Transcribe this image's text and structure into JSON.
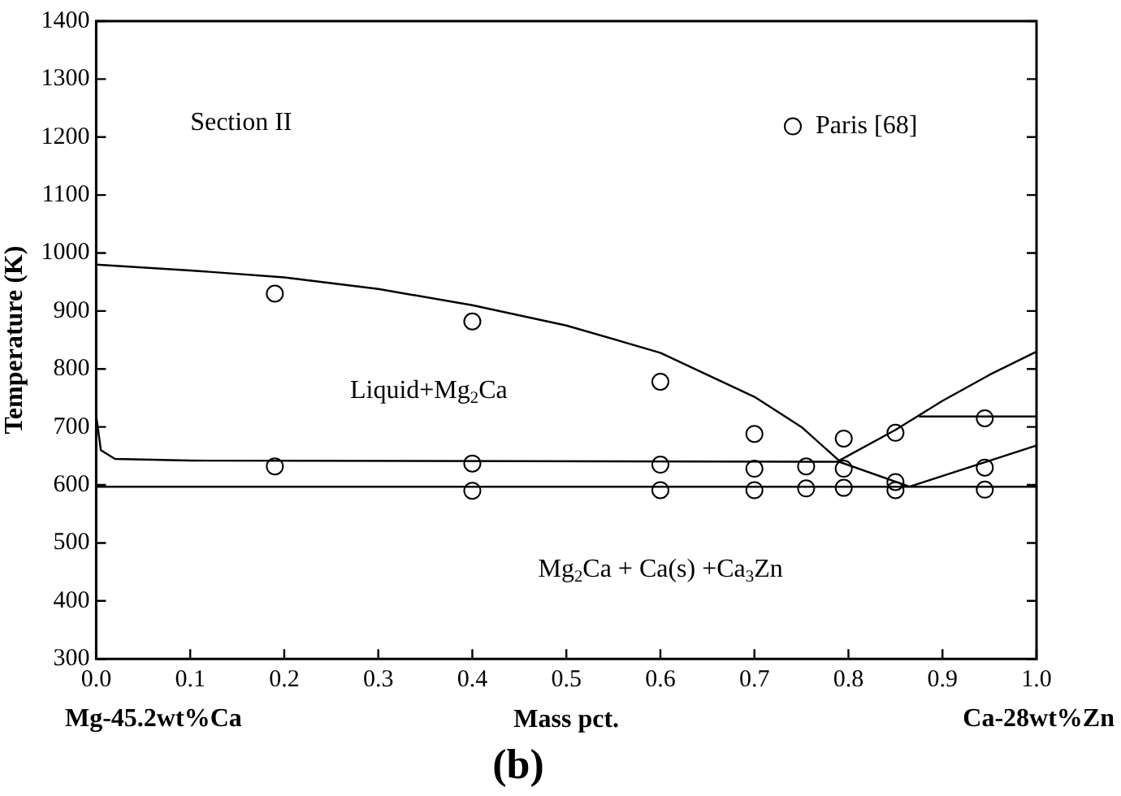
{
  "chart_data": {
    "type": "line",
    "title": "(b)",
    "xlabel": "Mass pct.",
    "ylabel": "Temperature (K)",
    "xlim": [
      0,
      1
    ],
    "ylim": [
      300,
      1400
    ],
    "xticks": [
      {
        "value": 0,
        "label": "0.0"
      },
      {
        "value": 0.1,
        "label": "0.1"
      },
      {
        "value": 0.2,
        "label": "0.2"
      },
      {
        "value": 0.3,
        "label": "0.3"
      },
      {
        "value": 0.4,
        "label": "0.4"
      },
      {
        "value": 0.5,
        "label": "0.5"
      },
      {
        "value": 0.6,
        "label": "0.6"
      },
      {
        "value": 0.7,
        "label": "0.7"
      },
      {
        "value": 0.8,
        "label": "0.8"
      },
      {
        "value": 0.9,
        "label": "0.9"
      },
      {
        "value": 1,
        "label": "1.0"
      }
    ],
    "yticks": [
      300,
      400,
      500,
      600,
      700,
      800,
      900,
      1000,
      1100,
      1200,
      1300,
      1400
    ],
    "grid": false,
    "legend": "top right",
    "series": [
      {
        "type": "line",
        "color": "#000000",
        "marker": "none",
        "x": [
          0,
          0.1,
          0.2,
          0.3,
          0.4,
          0.5,
          0.6,
          0.7,
          0.75,
          0.79
        ],
        "values": [
          980,
          970,
          958,
          938,
          910,
          875,
          828,
          752,
          700,
          642
        ]
      },
      {
        "type": "line",
        "color": "#000000",
        "marker": "none",
        "x": [
          0.79,
          0.85,
          0.9,
          0.95,
          1.0
        ],
        "values": [
          642,
          695,
          745,
          790,
          830
        ]
      },
      {
        "type": "line",
        "color": "#000000",
        "marker": "none",
        "x": [
          0,
          0.005,
          0.02,
          0.1,
          0.79
        ],
        "values": [
          720,
          660,
          645,
          642,
          640
        ]
      },
      {
        "type": "line",
        "color": "#000000",
        "marker": "none",
        "x": [
          0,
          1
        ],
        "values": [
          597,
          597
        ]
      },
      {
        "type": "line",
        "color": "#000000",
        "marker": "none",
        "x": [
          0.79,
          0.865
        ],
        "values": [
          640,
          597
        ]
      },
      {
        "type": "line",
        "color": "#000000",
        "marker": "none",
        "x": [
          0.865,
          1
        ],
        "values": [
          597,
          668
        ]
      },
      {
        "type": "line",
        "color": "#000000",
        "marker": "none",
        "x": [
          0.875,
          1
        ],
        "values": [
          718,
          718
        ]
      },
      {
        "type": "scatter",
        "name": "Paris [68]",
        "color": "#000000",
        "marker": "circle",
        "x": [
          0.19,
          0.19,
          0.4,
          0.4,
          0.4,
          0.6,
          0.6,
          0.6,
          0.7,
          0.7,
          0.7,
          0.755,
          0.755,
          0.795,
          0.795,
          0.795,
          0.85,
          0.85,
          0.85,
          0.945,
          0.945,
          0.945
        ],
        "values": [
          930,
          632,
          882,
          637,
          590,
          778,
          635,
          591,
          688,
          628,
          591,
          632,
          594,
          680,
          628,
          595,
          690,
          605,
          591,
          715,
          630,
          592
        ]
      }
    ],
    "annotations": [
      "Section II",
      "Liquid+Mg$_{2}$Ca",
      "Mg$_{2}$Ca + Ca(s) +Ca$_{3}$Zn",
      "Mg-45.2wt%Ca",
      "Ca-28wt%Zn"
    ]
  }
}
